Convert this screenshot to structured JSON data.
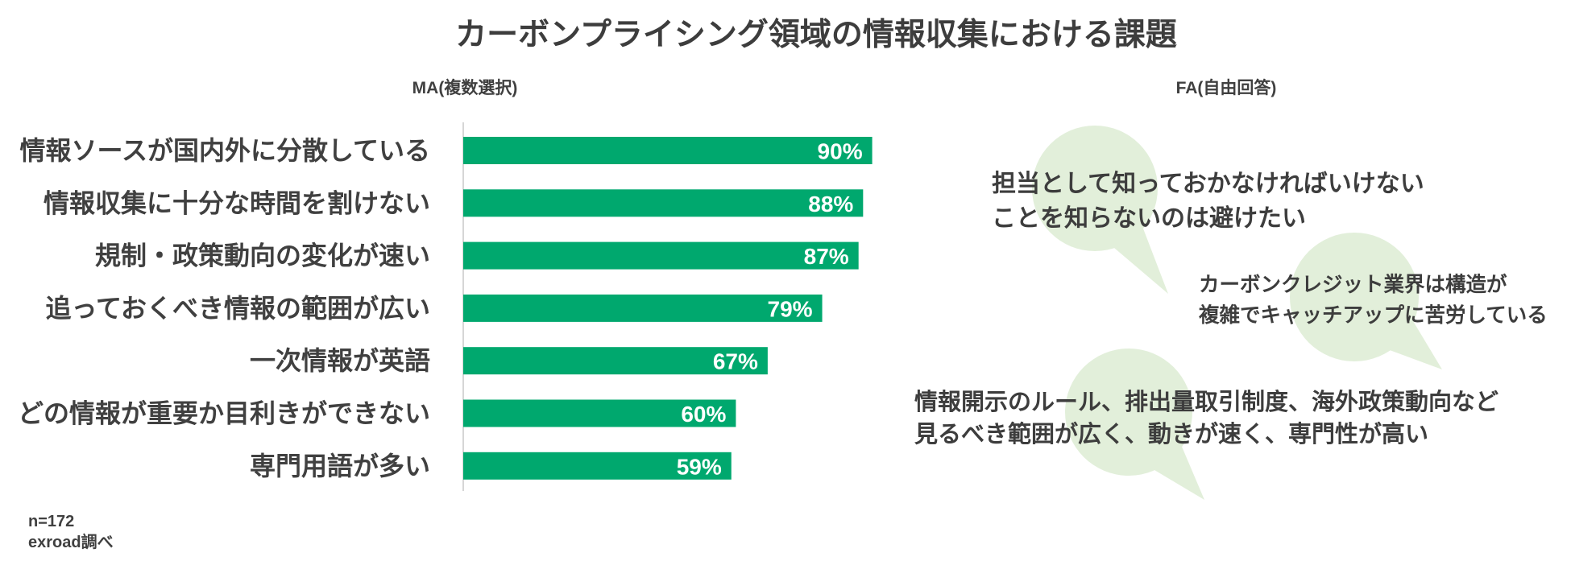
{
  "title": "カーボンプライシング領域の情報収集における課題",
  "chart_data": {
    "type": "bar",
    "orientation": "horizontal",
    "subtitle": "MA(複数選択)",
    "categories": [
      "情報ソースが国内外に分散している",
      "情報収集に十分な時間を割けない",
      "規制・政策動向の変化が速い",
      "追っておくべき情報の範囲が広い",
      "一次情報が英語",
      "どの情報が重要か目利きができない",
      "専門用語が多い"
    ],
    "values": [
      90,
      88,
      87,
      79,
      67,
      60,
      59
    ],
    "value_suffix": "%",
    "xlim": [
      0,
      100
    ],
    "grid": false,
    "colors": {
      "bar": "#00a86e",
      "value_label": "#ffffff",
      "category_label": "#404040",
      "axis": "#c8c8c8"
    }
  },
  "fa_section": {
    "heading": "FA(自由回答)",
    "bubble_color": "#e2efda",
    "comments": [
      {
        "lines": [
          "担当として知っておかなければいけない",
          "ことを知らないのは避けたい"
        ]
      },
      {
        "lines": [
          "カーボンクレジット業界は構造が",
          "複雑でキャッチアップに苦労している"
        ]
      },
      {
        "lines": [
          "情報開示のルール、排出量取引制度、海外政策動向など",
          "見るべき範囲が広く、動きが速く、専門性が高い"
        ]
      }
    ]
  },
  "footnote": {
    "sample_size": "n=172",
    "source": "exroad調べ"
  }
}
